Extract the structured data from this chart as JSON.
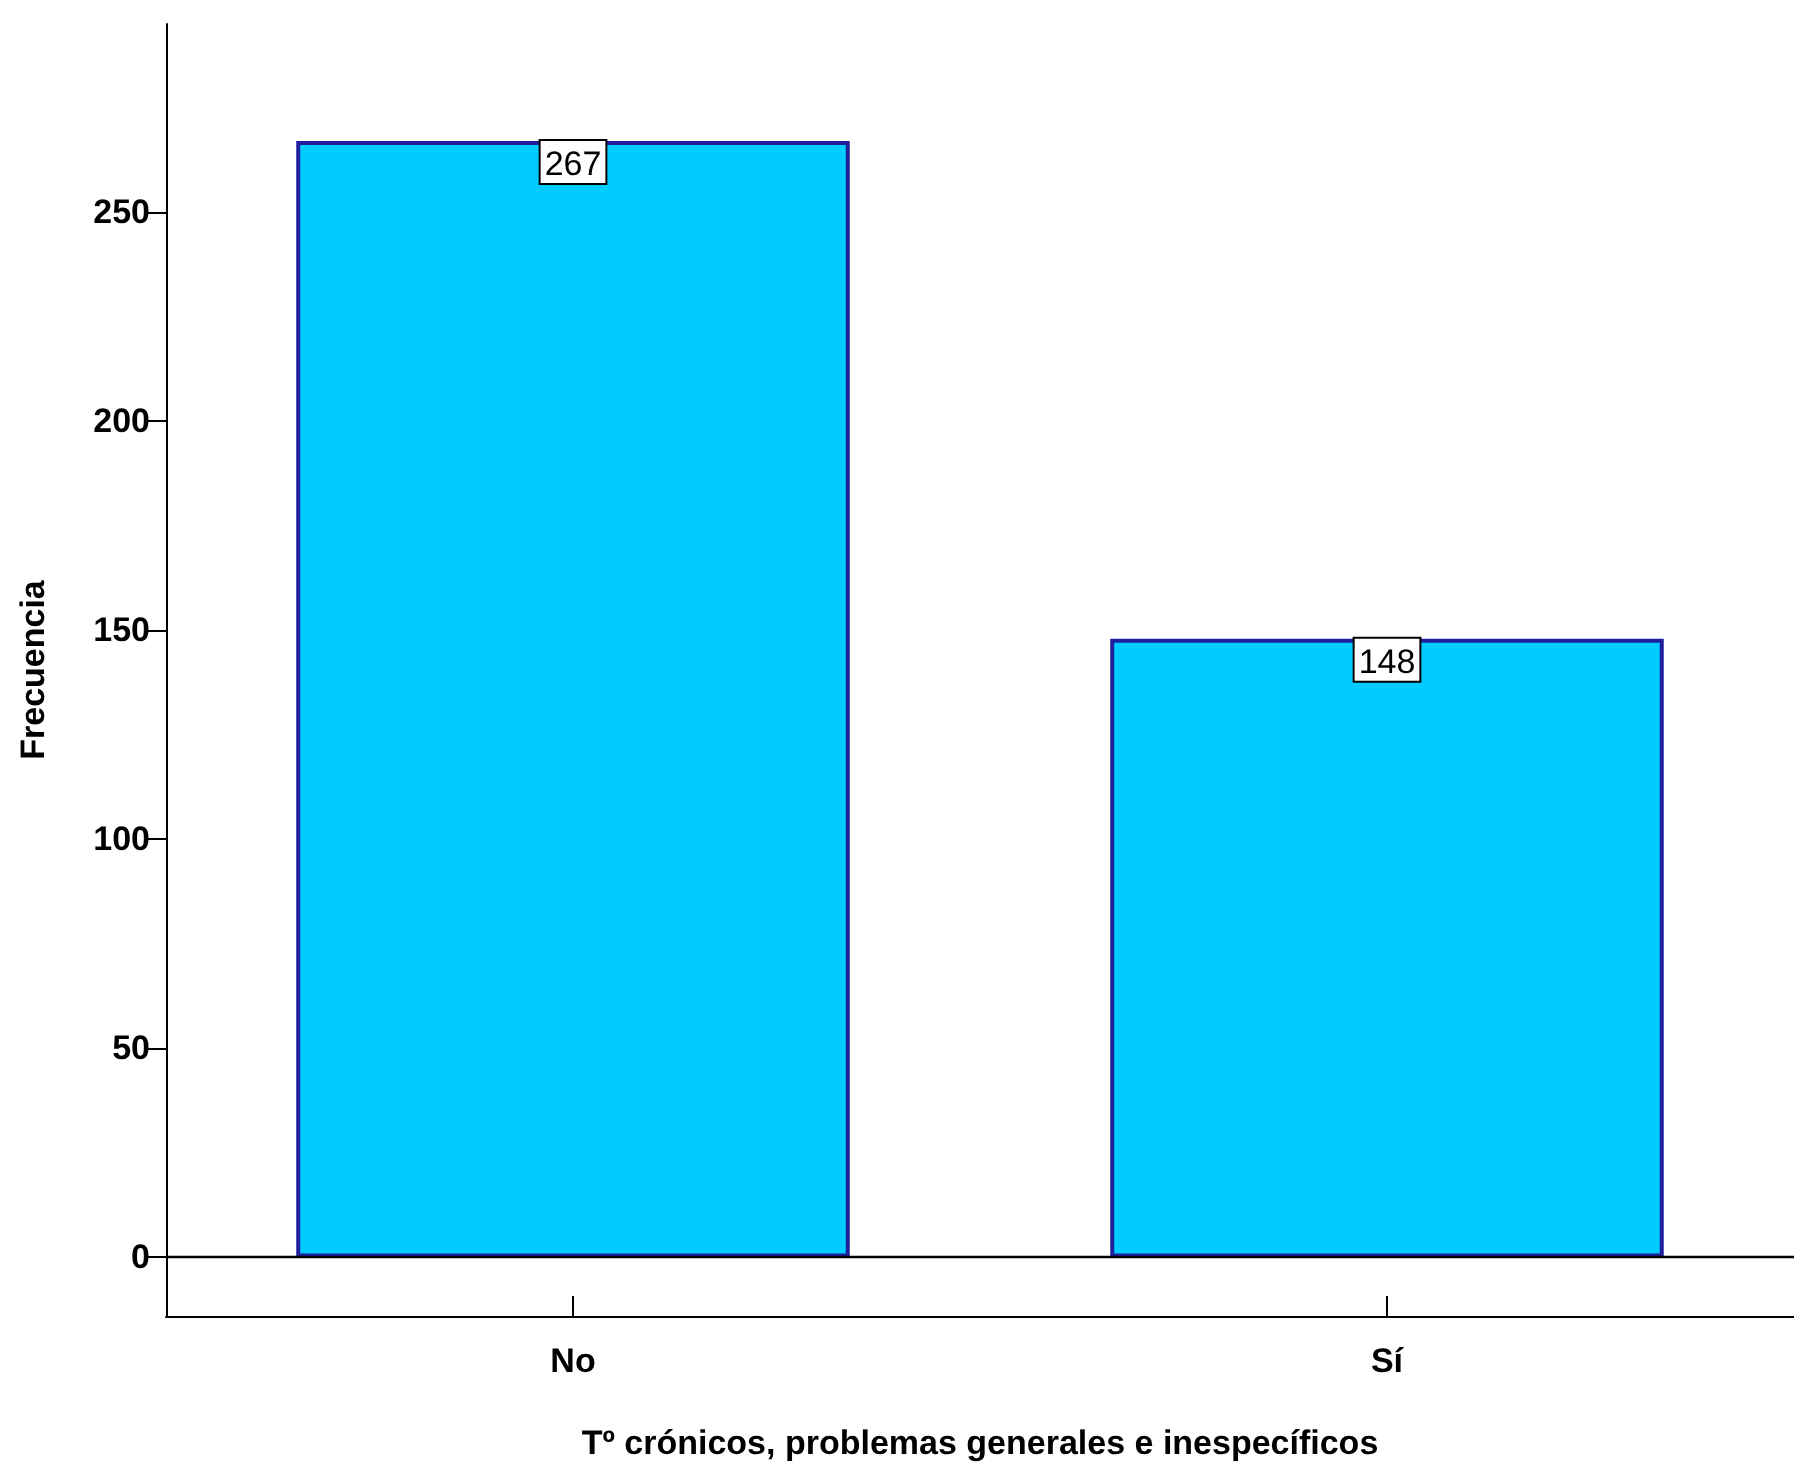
{
  "chart_data": {
    "type": "bar",
    "xlabel": "Tº crónicos, problemas generales e inespecíficos",
    "ylabel": "Frecuencia",
    "categories": [
      "No",
      "Sí"
    ],
    "values": [
      267,
      148
    ],
    "color": "#00ccff",
    "data_labels": true,
    "ylim": [
      -14,
      295
    ],
    "yticks": [
      0,
      50,
      100,
      150,
      200,
      250
    ],
    "ref_lines": [
      {
        "axis": "y",
        "value": 0,
        "color": "#000000"
      }
    ],
    "grid": false
  }
}
